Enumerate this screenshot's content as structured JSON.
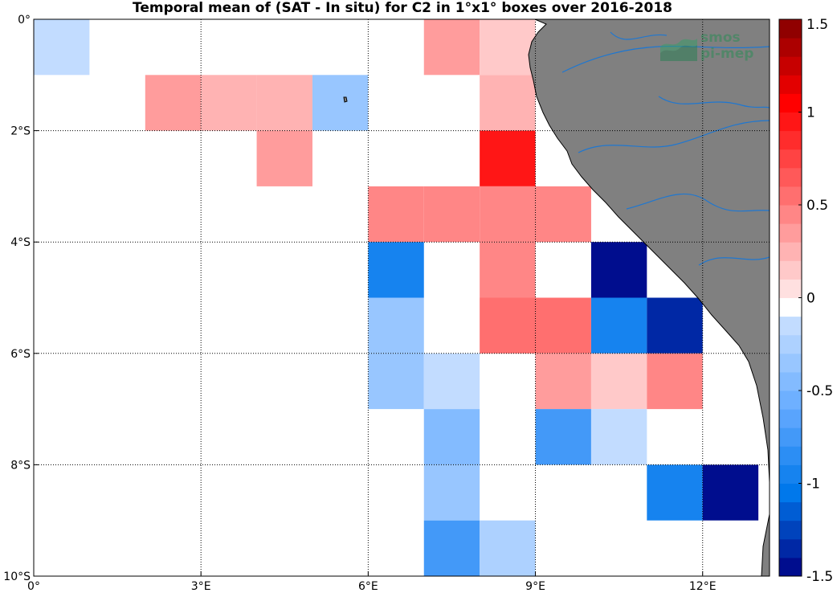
{
  "title": "Temporal mean of (SAT - In situ) for C2 in 1°x1° boxes over 2016-2018",
  "watermark": {
    "line1": "smos",
    "line2": "pi-mep"
  },
  "colors": {
    "land": "#808080",
    "rivers": "#1f77d0",
    "grid": "#000000"
  },
  "chart_data": {
    "type": "heatmap",
    "title": "Temporal mean of (SAT - In situ) for C2 in 1°x1° boxes over 2016-2018",
    "xlim": [
      0,
      13.2
    ],
    "ylim": [
      -10,
      0
    ],
    "x_ticks": [
      {
        "value": 0,
        "label": "0°"
      },
      {
        "value": 3,
        "label": "3°E"
      },
      {
        "value": 6,
        "label": "6°E"
      },
      {
        "value": 9,
        "label": "9°E"
      },
      {
        "value": 12,
        "label": "12°E"
      }
    ],
    "y_ticks": [
      {
        "value": 0,
        "label": "0°"
      },
      {
        "value": -2,
        "label": "2°S"
      },
      {
        "value": -4,
        "label": "4°S"
      },
      {
        "value": -6,
        "label": "6°S"
      },
      {
        "value": -8,
        "label": "8°S"
      },
      {
        "value": -10,
        "label": "10°S"
      }
    ],
    "grid": true,
    "colorbar": {
      "range": [
        -1.5,
        1.5
      ],
      "step": 0.1,
      "tick_labels": [
        {
          "value": 1.5,
          "label": "1.5"
        },
        {
          "value": 1,
          "label": "1"
        },
        {
          "value": 0.5,
          "label": "0.5"
        },
        {
          "value": 0,
          "label": "0"
        },
        {
          "value": -0.5,
          "label": "-0.5"
        },
        {
          "value": -1,
          "label": "-1"
        },
        {
          "value": -1.5,
          "label": "-1.5"
        }
      ]
    },
    "cells": [
      {
        "lon": 0,
        "lat": -1,
        "value": -0.15
      },
      {
        "lon": 7,
        "lat": -1,
        "value": 0.35
      },
      {
        "lon": 8,
        "lat": -1,
        "value": 0.15
      },
      {
        "lon": 2,
        "lat": -2,
        "value": 0.35
      },
      {
        "lon": 3,
        "lat": -2,
        "value": 0.25
      },
      {
        "lon": 4,
        "lat": -2,
        "value": 0.25
      },
      {
        "lon": 5,
        "lat": -2,
        "value": -0.35
      },
      {
        "lon": 8,
        "lat": -2,
        "value": 0.25
      },
      {
        "lon": 4,
        "lat": -3,
        "value": 0.35
      },
      {
        "lon": 8,
        "lat": -3,
        "value": 0.95
      },
      {
        "lon": 6,
        "lat": -4,
        "value": 0.45
      },
      {
        "lon": 7,
        "lat": -4,
        "value": 0.45
      },
      {
        "lon": 8,
        "lat": -4,
        "value": 0.45
      },
      {
        "lon": 9,
        "lat": -4,
        "value": 0.45
      },
      {
        "lon": 6,
        "lat": -5,
        "value": -0.95
      },
      {
        "lon": 8,
        "lat": -5,
        "value": 0.45
      },
      {
        "lon": 10,
        "lat": -5,
        "value": -1.45
      },
      {
        "lon": 6,
        "lat": -6,
        "value": -0.35
      },
      {
        "lon": 8,
        "lat": -6,
        "value": 0.55
      },
      {
        "lon": 9,
        "lat": -6,
        "value": 0.55
      },
      {
        "lon": 10,
        "lat": -6,
        "value": -0.95
      },
      {
        "lon": 11,
        "lat": -6,
        "value": -1.35
      },
      {
        "lon": 6,
        "lat": -7,
        "value": -0.35
      },
      {
        "lon": 7,
        "lat": -7,
        "value": -0.15
      },
      {
        "lon": 9,
        "lat": -7,
        "value": 0.35
      },
      {
        "lon": 10,
        "lat": -7,
        "value": 0.15
      },
      {
        "lon": 11,
        "lat": -7,
        "value": 0.45
      },
      {
        "lon": 7,
        "lat": -8,
        "value": -0.45
      },
      {
        "lon": 9,
        "lat": -8,
        "value": -0.75
      },
      {
        "lon": 10,
        "lat": -8,
        "value": -0.15
      },
      {
        "lon": 7,
        "lat": -9,
        "value": -0.35
      },
      {
        "lon": 11,
        "lat": -9,
        "value": -0.95
      },
      {
        "lon": 12,
        "lat": -9,
        "value": -1.45
      },
      {
        "lon": 7,
        "lat": -10,
        "value": -0.75
      },
      {
        "lon": 8,
        "lat": -10,
        "value": -0.25
      }
    ]
  }
}
